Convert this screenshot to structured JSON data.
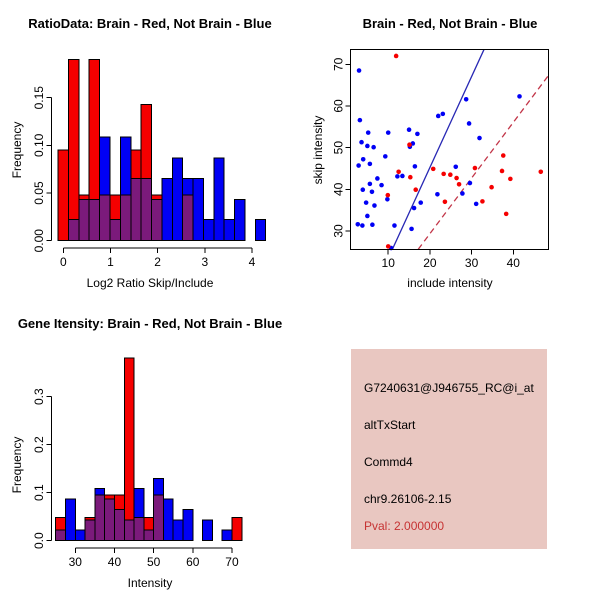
{
  "figure": {
    "bg": "#FFFFFF",
    "colors": {
      "red": "#F50000",
      "blue": "#0000F5",
      "overlap": "#7B1A7B",
      "line_blue": "#2828B4",
      "line_red": "#C23548",
      "axis": "#000000"
    }
  },
  "chart_data": [
    {
      "type": "bar",
      "id": "ratio_hist",
      "title": "RatioData: Brain - Red, Not Brain - Blue",
      "xlabel": "Log2 Ratio Skip/Include",
      "ylabel": "Frequency",
      "bin_start": -0.11,
      "bin_width": 0.22,
      "xticks": [
        0,
        1,
        2,
        3,
        4
      ],
      "ytick_values": [
        0,
        0.05,
        0.1,
        0.15
      ],
      "ytick_labels": [
        "0.00",
        "0.05",
        "0.10",
        "0.15"
      ],
      "ylim": [
        0,
        0.195
      ],
      "series": [
        {
          "name": "Brain (red)",
          "values": [
            0.095,
            0.19,
            0.048,
            0.19,
            0.048,
            0.048,
            0.048,
            0.095,
            0.143,
            0.048,
            0,
            0,
            0.048,
            0,
            0,
            0,
            0,
            0,
            0,
            0
          ]
        },
        {
          "name": "Not Brain (blue)",
          "values": [
            0,
            0.022,
            0.043,
            0.043,
            0.109,
            0.022,
            0.109,
            0.065,
            0.065,
            0.043,
            0.065,
            0.087,
            0.065,
            0.065,
            0.022,
            0.087,
            0.022,
            0.043,
            0,
            0.022
          ]
        }
      ]
    },
    {
      "type": "scatter",
      "id": "intensity_scatter",
      "title": "Brain - Red, Not Brain - Blue",
      "xlabel": "include intensity",
      "ylabel": "skip intensity",
      "xlim": [
        1,
        48.5
      ],
      "ylim": [
        25.6,
        73.6
      ],
      "xticks": [
        10,
        20,
        30,
        40
      ],
      "yticks": [
        30,
        40,
        50,
        60,
        70
      ],
      "series": [
        {
          "name": "Not Brain (blue)",
          "color_key": "blue",
          "points": [
            [
              3,
              68.5
            ],
            [
              3.2,
              56.6
            ],
            [
              5.2,
              53.6
            ],
            [
              10,
              53.6
            ],
            [
              15,
              54.3
            ],
            [
              17,
              53.3
            ],
            [
              3.6,
              51.3
            ],
            [
              5,
              50.4
            ],
            [
              6.5,
              50.1
            ],
            [
              15.2,
              50.2
            ],
            [
              15.9,
              51
            ],
            [
              4,
              47.2
            ],
            [
              9.3,
              47.9
            ],
            [
              2.9,
              45.7
            ],
            [
              5.6,
              46.1
            ],
            [
              16.4,
              45.5
            ],
            [
              12.2,
              43.1
            ],
            [
              13.4,
              43.2
            ],
            [
              26.2,
              45.4
            ],
            [
              7.4,
              42.6
            ],
            [
              8.4,
              41
            ],
            [
              5.6,
              41.3
            ],
            [
              3.9,
              39.9
            ],
            [
              6.1,
              39.4
            ],
            [
              29.6,
              41.5
            ],
            [
              21.8,
              38.8
            ],
            [
              27.8,
              39
            ],
            [
              9.8,
              37.6
            ],
            [
              17.8,
              36.8
            ],
            [
              4.7,
              36.8
            ],
            [
              6.7,
              36.1
            ],
            [
              31.1,
              36.5
            ],
            [
              5,
              33.6
            ],
            [
              16.2,
              35.5
            ],
            [
              2.7,
              31.6
            ],
            [
              3.8,
              31.3
            ],
            [
              6.2,
              31.5
            ],
            [
              11.5,
              31.3
            ],
            [
              15.6,
              30.5
            ],
            [
              10.7,
              25.9
            ],
            [
              22,
              57.6
            ],
            [
              23.1,
              58.1
            ],
            [
              28.7,
              61.6
            ],
            [
              29.4,
              55.8
            ],
            [
              31.9,
              52.3
            ],
            [
              41.5,
              62.3
            ]
          ]
        },
        {
          "name": "Brain (red)",
          "color_key": "red",
          "points": [
            [
              11.9,
              72
            ],
            [
              10,
              26.3
            ],
            [
              12.5,
              44.2
            ],
            [
              9.9,
              38.6
            ],
            [
              15.1,
              50.7
            ],
            [
              15.3,
              42.9
            ],
            [
              16.6,
              39.9
            ],
            [
              20.8,
              44.9
            ],
            [
              23.3,
              43.7
            ],
            [
              23.6,
              37
            ],
            [
              26.4,
              42.7
            ],
            [
              27,
              41.2
            ],
            [
              30.8,
              45.1
            ],
            [
              32.6,
              37.1
            ],
            [
              34.8,
              40.5
            ],
            [
              37.6,
              48.1
            ],
            [
              37.3,
              44.4
            ],
            [
              39.3,
              42.5
            ],
            [
              38.3,
              34.1
            ],
            [
              46.6,
              44.2
            ],
            [
              24.9,
              43.5
            ]
          ]
        }
      ],
      "lines": [
        {
          "name": "not-brain-fit",
          "style": "solid",
          "color_key": "line_blue",
          "x1": 11,
          "y1": 25.6,
          "x2": 33,
          "y2": 73.6
        },
        {
          "name": "brain-fit",
          "style": "dashed",
          "color_key": "line_red",
          "x1": 17.2,
          "y1": 25.6,
          "x2": 48.5,
          "y2": 67.4
        }
      ]
    },
    {
      "type": "bar",
      "id": "gene_hist",
      "title": "Gene Itensity: Brain - Red, Not Brain - Blue",
      "xlabel": "Intensity",
      "ylabel": "Frequency",
      "bin_start": 25,
      "bin_width": 2.5,
      "xticks": [
        30,
        40,
        50,
        60,
        70
      ],
      "ytick_values": [
        0,
        0.1,
        0.2,
        0.3
      ],
      "ytick_labels": [
        "0.0",
        "0.1",
        "0.2",
        "0.3"
      ],
      "ylim": [
        0,
        0.385
      ],
      "series": [
        {
          "name": "Brain (red)",
          "values": [
            0.048,
            0,
            0,
            0.048,
            0.095,
            0.095,
            0.095,
            0.381,
            0.048,
            0.048,
            0.095,
            0,
            0,
            0,
            0,
            0,
            0,
            0,
            0.048
          ]
        },
        {
          "name": "Not Brain (blue)",
          "values": [
            0.022,
            0.087,
            0.022,
            0.043,
            0.109,
            0.087,
            0.065,
            0.043,
            0.109,
            0.022,
            0.13,
            0.087,
            0.043,
            0.065,
            0,
            0.043,
            0,
            0.022,
            0
          ]
        }
      ]
    }
  ],
  "info_panel": {
    "bg": "#E9C7C1",
    "probe_id": "G7240631@J946755_RC@i_at",
    "event_type": "altTxStart",
    "gene": "Commd4",
    "location": "chr9.26106-2.15",
    "pval": "Pval: 2.000000",
    "pval_color": "#C63333"
  }
}
